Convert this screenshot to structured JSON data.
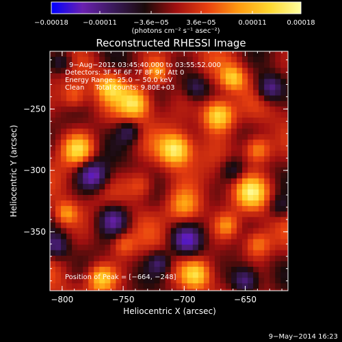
{
  "chart_data": {
    "type": "heatmap",
    "title": "Reconstructed RHESSI Image",
    "xlabel": "Heliocentric X (arcsec)",
    "ylabel": "Heliocentric Y (arcsec)",
    "xlim": [
      -810,
      -615
    ],
    "ylim": [
      -398,
      -203
    ],
    "x_ticks": [
      {
        "value": -800,
        "label": "−800"
      },
      {
        "value": -750,
        "label": "−750"
      },
      {
        "value": -700,
        "label": "−700"
      },
      {
        "value": -650,
        "label": "−650"
      }
    ],
    "y_ticks": [
      {
        "value": -250,
        "label": "−250"
      },
      {
        "value": -300,
        "label": "−300"
      },
      {
        "value": -350,
        "label": "−350"
      }
    ],
    "colorbar": {
      "range": [
        -0.00018,
        0.00018
      ],
      "ticks": [
        {
          "value": -0.00018,
          "label": "−0.00018"
        },
        {
          "value": -0.00011,
          "label": "−0.00011"
        },
        {
          "value": -3.6e-05,
          "label": "−3.6e−05"
        },
        {
          "value": 3.6e-05,
          "label": "3.6e−05"
        },
        {
          "value": 0.00011,
          "label": "0.00011"
        },
        {
          "value": 0.00018,
          "label": "0.00018"
        }
      ],
      "unit_label": "(photons cm⁻² s⁻¹ asec⁻²)",
      "colors": [
        "#0000ff",
        "#6a20b0",
        "#3a1a5a",
        "#1a0a0a",
        "#a01010",
        "#e84010",
        "#ff9a10",
        "#ffd830",
        "#ffffa0"
      ]
    },
    "annotations": [
      "9−Aug−2012 03:45:40.000 to 03:55:52.000",
      "Detectors: 3F 5F 6F 7F 8F 9F, Att 0",
      "Energy Range: 25.0 − 50.0 keV",
      "Clean     Total counts: 9.80E+03"
    ],
    "peak_label": "Position of Peak = [−664, −248]",
    "peak": [
      -664,
      -248
    ],
    "blobs": [
      {
        "x": -672,
        "y": -255,
        "v": 1.0,
        "s": 9
      },
      {
        "x": -707,
        "y": -283,
        "v": 0.92,
        "s": 9
      },
      {
        "x": -740,
        "y": -245,
        "v": 0.8,
        "s": 9
      },
      {
        "x": -787,
        "y": -283,
        "v": 0.75,
        "s": 9
      },
      {
        "x": -640,
        "y": -283,
        "v": 0.7,
        "s": 8
      },
      {
        "x": -700,
        "y": -330,
        "v": 0.62,
        "s": 10
      },
      {
        "x": -645,
        "y": -318,
        "v": 0.7,
        "s": 9
      },
      {
        "x": -760,
        "y": -232,
        "v": 0.62,
        "s": 8
      },
      {
        "x": -722,
        "y": -220,
        "v": 0.55,
        "s": 7
      },
      {
        "x": -768,
        "y": -388,
        "v": 0.7,
        "s": 8
      },
      {
        "x": -690,
        "y": -385,
        "v": 0.6,
        "s": 8
      },
      {
        "x": -640,
        "y": -360,
        "v": 0.55,
        "s": 8
      },
      {
        "x": -797,
        "y": -335,
        "v": 0.55,
        "s": 7
      },
      {
        "x": -735,
        "y": -312,
        "v": 0.45,
        "s": 8
      },
      {
        "x": -660,
        "y": -225,
        "v": 0.6,
        "s": 7
      },
      {
        "x": -750,
        "y": -360,
        "v": 0.4,
        "s": 7
      },
      {
        "x": -665,
        "y": -345,
        "v": 0.45,
        "s": 7
      },
      {
        "x": -790,
        "y": -240,
        "v": 0.4,
        "s": 7
      },
      {
        "x": -775,
        "y": -304,
        "v": -0.8,
        "s": 9
      },
      {
        "x": -758,
        "y": -340,
        "v": -0.7,
        "s": 9
      },
      {
        "x": -698,
        "y": -358,
        "v": -0.75,
        "s": 9
      },
      {
        "x": -630,
        "y": -233,
        "v": -0.7,
        "s": 8
      },
      {
        "x": -650,
        "y": -390,
        "v": -0.7,
        "s": 8
      },
      {
        "x": -745,
        "y": -268,
        "v": -0.5,
        "s": 7
      },
      {
        "x": -690,
        "y": -232,
        "v": -0.45,
        "s": 7
      },
      {
        "x": -720,
        "y": -375,
        "v": -0.5,
        "s": 7
      },
      {
        "x": -805,
        "y": -362,
        "v": -0.5,
        "s": 7
      },
      {
        "x": -660,
        "y": -300,
        "v": -0.4,
        "s": 7
      },
      {
        "x": -800,
        "y": -212,
        "v": -0.45,
        "s": 7
      },
      {
        "x": -622,
        "y": -330,
        "v": -0.4,
        "s": 7
      }
    ]
  },
  "footer": {
    "date": "9−May−2014 16:23"
  }
}
